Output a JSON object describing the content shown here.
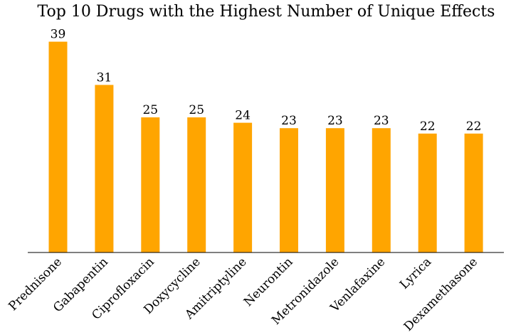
{
  "chart_data": {
    "type": "bar",
    "title": "Top 10 Drugs with the Highest Number of Unique Effects",
    "xlabel": "",
    "ylabel": "",
    "categories": [
      "Prednisone",
      "Gabapentin",
      "Ciprofloxacin",
      "Doxycycline",
      "Amitriptyline",
      "Neurontin",
      "Metronidazole",
      "Venlafaxine",
      "Lyrica",
      "Dexamethasone"
    ],
    "values": [
      39,
      31,
      25,
      25,
      24,
      23,
      23,
      23,
      22,
      22
    ],
    "ylim": [
      0,
      40
    ],
    "grid": false,
    "legend": "none",
    "bar_color": "#FFA500",
    "show_value_labels": true,
    "y_axis_visible": false
  }
}
